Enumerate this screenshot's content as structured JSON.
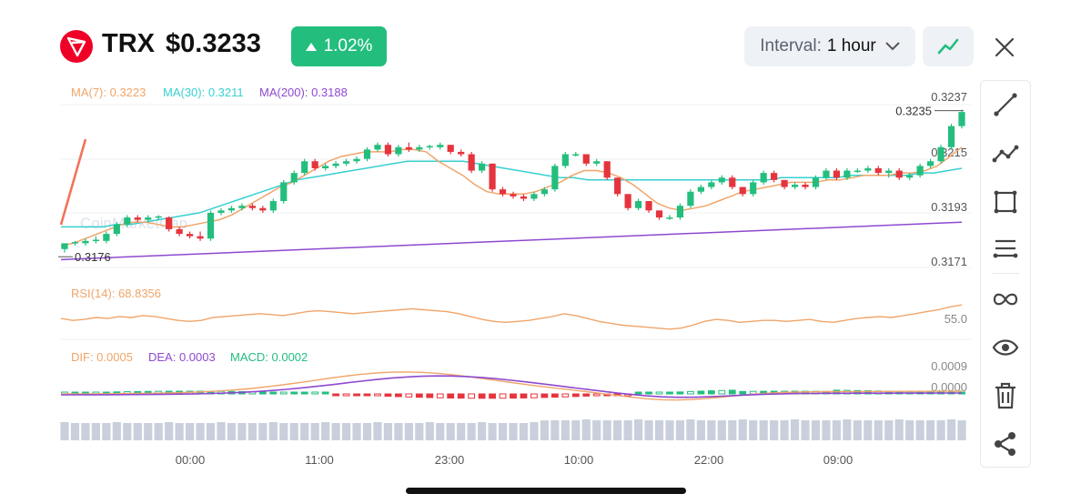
{
  "header": {
    "symbol": "TRX",
    "price": "$0.3233",
    "change": "1.02%",
    "change_direction": "up",
    "interval_label": "Interval:",
    "interval_value": "1 hour",
    "up_color": "#23BE7E",
    "down_color": "#E5343D",
    "logo_color": "#EF0027"
  },
  "icons": {
    "logo": "tron-logo-icon",
    "change_arrow": "triangle-up-icon",
    "interval_dropdown": "chevron-down-icon",
    "line_mode": "line-chart-icon",
    "close": "close-icon"
  },
  "toolbar": [
    {
      "name": "line-tool",
      "icon": "diagonal-line-icon"
    },
    {
      "name": "polyline-tool",
      "icon": "polyline-icon"
    },
    {
      "name": "rectangle-tool",
      "icon": "rectangle-icon"
    },
    {
      "name": "parallel-lines-tool",
      "icon": "parallel-lines-icon"
    },
    {
      "name": "link-tool",
      "icon": "infinity-icon"
    },
    {
      "name": "visibility-tool",
      "icon": "eye-icon"
    },
    {
      "name": "delete-tool",
      "icon": "trash-icon"
    },
    {
      "name": "share-tool",
      "icon": "share-icon"
    }
  ],
  "chart_data": {
    "type": "candlestick",
    "x_labels": [
      "00:00",
      "11:00",
      "23:00",
      "10:00",
      "22:00",
      "09:00"
    ],
    "price_axis": [
      "0.3237",
      "0.3215",
      "0.3193",
      "0.3171"
    ],
    "ylim": [
      0.3171,
      0.3237
    ],
    "high_marker": "0.3235",
    "low_marker": "0.3176",
    "ma_legend": [
      {
        "label": "MA(7): 0.3223",
        "color": "#F0A56A"
      },
      {
        "label": "MA(30): 0.3211",
        "color": "#39CFD0"
      },
      {
        "label": "MA(200): 0.3188",
        "color": "#8E49CF"
      }
    ],
    "rsi_label": "RSI(14): 68.8356",
    "rsi_axis": "55.0",
    "rsi_color": "#F0A56A",
    "macd_legend": [
      {
        "label": "DIF: 0.0005",
        "color": "#F0A56A"
      },
      {
        "label": "DEA: 0.0003",
        "color": "#8E49CF"
      },
      {
        "label": "MACD: 0.0002",
        "color": "#23BE7E"
      }
    ],
    "macd_axis": [
      "0.0009",
      "0.0000"
    ],
    "volume_color": "#C9D0DC",
    "watermark": "CoinMarketCap",
    "candles": [
      [
        0.31765,
        0.31785,
        0.3175,
        0.3179
      ],
      [
        0.3179,
        0.318,
        0.3178,
        0.31795
      ],
      [
        0.3179,
        0.3181,
        0.3178,
        0.318
      ],
      [
        0.318,
        0.3182,
        0.3179,
        0.31805
      ],
      [
        0.318,
        0.3184,
        0.3179,
        0.3183
      ],
      [
        0.3183,
        0.3188,
        0.3182,
        0.3187
      ],
      [
        0.3187,
        0.3191,
        0.3186,
        0.319
      ],
      [
        0.319,
        0.3191,
        0.3188,
        0.3189
      ],
      [
        0.3189,
        0.3191,
        0.3188,
        0.319
      ],
      [
        0.319,
        0.3191,
        0.3189,
        0.31905
      ],
      [
        0.319,
        0.31905,
        0.3184,
        0.3185
      ],
      [
        0.3185,
        0.3186,
        0.3182,
        0.3183
      ],
      [
        0.3183,
        0.3184,
        0.3181,
        0.3182
      ],
      [
        0.3182,
        0.3184,
        0.318,
        0.3181
      ],
      [
        0.3181,
        0.3193,
        0.318,
        0.3192
      ],
      [
        0.3192,
        0.3194,
        0.3191,
        0.3193
      ],
      [
        0.3193,
        0.3195,
        0.3192,
        0.3194
      ],
      [
        0.3194,
        0.3196,
        0.3193,
        0.3195
      ],
      [
        0.3195,
        0.3196,
        0.3193,
        0.3194
      ],
      [
        0.3194,
        0.3195,
        0.3192,
        0.3193
      ],
      [
        0.3193,
        0.3198,
        0.3192,
        0.3197
      ],
      [
        0.3197,
        0.3206,
        0.3196,
        0.3205
      ],
      [
        0.3205,
        0.321,
        0.3204,
        0.3209
      ],
      [
        0.3209,
        0.3215,
        0.3208,
        0.3214
      ],
      [
        0.3214,
        0.3215,
        0.321,
        0.3211
      ],
      [
        0.3211,
        0.3213,
        0.321,
        0.3212
      ],
      [
        0.3212,
        0.3214,
        0.3211,
        0.3213
      ],
      [
        0.3213,
        0.3215,
        0.3212,
        0.3214
      ],
      [
        0.3214,
        0.3216,
        0.3213,
        0.3215
      ],
      [
        0.3215,
        0.322,
        0.3214,
        0.3219
      ],
      [
        0.3219,
        0.3222,
        0.3218,
        0.3221
      ],
      [
        0.3221,
        0.3222,
        0.3216,
        0.3217
      ],
      [
        0.3217,
        0.3221,
        0.3216,
        0.322
      ],
      [
        0.322,
        0.3222,
        0.3218,
        0.3219
      ],
      [
        0.3219,
        0.3221,
        0.3218,
        0.322
      ],
      [
        0.322,
        0.3221,
        0.3219,
        0.32205
      ],
      [
        0.322,
        0.3222,
        0.3219,
        0.3221
      ],
      [
        0.3221,
        0.3221,
        0.3217,
        0.3218
      ],
      [
        0.3218,
        0.3219,
        0.3216,
        0.3217
      ],
      [
        0.3217,
        0.3218,
        0.3209,
        0.321
      ],
      [
        0.321,
        0.3214,
        0.3209,
        0.3213
      ],
      [
        0.3213,
        0.3213,
        0.3201,
        0.3202
      ],
      [
        0.3202,
        0.3203,
        0.3199,
        0.32
      ],
      [
        0.32,
        0.3201,
        0.3198,
        0.3199
      ],
      [
        0.3199,
        0.32,
        0.3197,
        0.3198
      ],
      [
        0.3198,
        0.3201,
        0.3197,
        0.32
      ],
      [
        0.32,
        0.3203,
        0.3199,
        0.3202
      ],
      [
        0.3202,
        0.3213,
        0.3201,
        0.3212
      ],
      [
        0.3212,
        0.3218,
        0.3211,
        0.3217
      ],
      [
        0.3217,
        0.3218,
        0.3216,
        0.3217
      ],
      [
        0.3217,
        0.3217,
        0.3212,
        0.3213
      ],
      [
        0.3213,
        0.3215,
        0.3212,
        0.3214
      ],
      [
        0.3214,
        0.3214,
        0.3206,
        0.3207
      ],
      [
        0.3207,
        0.3207,
        0.3199,
        0.32
      ],
      [
        0.32,
        0.32,
        0.3193,
        0.3194
      ],
      [
        0.3194,
        0.3198,
        0.3193,
        0.3197
      ],
      [
        0.3197,
        0.3197,
        0.3192,
        0.3193
      ],
      [
        0.3193,
        0.3193,
        0.3189,
        0.319
      ],
      [
        0.319,
        0.3191,
        0.3189,
        0.319
      ],
      [
        0.319,
        0.3196,
        0.3189,
        0.3195
      ],
      [
        0.3195,
        0.3202,
        0.3194,
        0.3201
      ],
      [
        0.3201,
        0.3204,
        0.32,
        0.3203
      ],
      [
        0.3203,
        0.3206,
        0.3202,
        0.3205
      ],
      [
        0.3205,
        0.3208,
        0.3204,
        0.3207
      ],
      [
        0.3207,
        0.3208,
        0.3202,
        0.3203
      ],
      [
        0.3203,
        0.3203,
        0.3199,
        0.32
      ],
      [
        0.32,
        0.3206,
        0.3199,
        0.3205
      ],
      [
        0.3205,
        0.321,
        0.3204,
        0.3209
      ],
      [
        0.3209,
        0.321,
        0.3205,
        0.3206
      ],
      [
        0.3206,
        0.3206,
        0.3202,
        0.3203
      ],
      [
        0.3203,
        0.3205,
        0.3202,
        0.3204
      ],
      [
        0.3204,
        0.3205,
        0.3202,
        0.3203
      ],
      [
        0.3203,
        0.3208,
        0.3202,
        0.3207
      ],
      [
        0.3207,
        0.3211,
        0.3206,
        0.321
      ],
      [
        0.321,
        0.3211,
        0.3206,
        0.3207
      ],
      [
        0.3207,
        0.3211,
        0.3206,
        0.321
      ],
      [
        0.321,
        0.3211,
        0.3209,
        0.321
      ],
      [
        0.321,
        0.3212,
        0.3209,
        0.3211
      ],
      [
        0.3211,
        0.3212,
        0.3208,
        0.3209
      ],
      [
        0.3209,
        0.3211,
        0.3207,
        0.321
      ],
      [
        0.321,
        0.3211,
        0.3206,
        0.3207
      ],
      [
        0.3207,
        0.3209,
        0.3206,
        0.3208
      ],
      [
        0.3208,
        0.3213,
        0.3207,
        0.3212
      ],
      [
        0.3212,
        0.3215,
        0.3211,
        0.3214
      ],
      [
        0.3214,
        0.3221,
        0.3213,
        0.322
      ],
      [
        0.322,
        0.323,
        0.3219,
        0.3229
      ],
      [
        0.3229,
        0.3236,
        0.3228,
        0.3235
      ]
    ],
    "ma7": [
      0.3178,
      0.3179,
      0.3181,
      0.3183,
      0.3185,
      0.3187,
      0.3188,
      0.3188,
      0.3187,
      0.3186,
      0.3186,
      0.3187,
      0.3188,
      0.3189,
      0.3191,
      0.3194,
      0.3197,
      0.32,
      0.3203,
      0.3205,
      0.3208,
      0.3211,
      0.3214,
      0.3216,
      0.3217,
      0.3218,
      0.3218,
      0.3218,
      0.3219,
      0.3219,
      0.3218,
      0.3214,
      0.3211,
      0.3208,
      0.3204,
      0.3201,
      0.32,
      0.32,
      0.32,
      0.3201,
      0.3203,
      0.3205,
      0.3208,
      0.321,
      0.321,
      0.3209,
      0.3207,
      0.3204,
      0.32,
      0.3196,
      0.3194,
      0.3193,
      0.3194,
      0.3195,
      0.3197,
      0.3199,
      0.3201,
      0.3202,
      0.3203,
      0.3204,
      0.3205,
      0.3205,
      0.3205,
      0.3206,
      0.3206,
      0.3207,
      0.3208,
      0.3208,
      0.3208,
      0.3209,
      0.3209,
      0.321,
      0.3212,
      0.3216,
      0.322
    ],
    "ma30": [
      0.3186,
      0.3186,
      0.3186,
      0.3186,
      0.3187,
      0.3187,
      0.3188,
      0.3189,
      0.319,
      0.3191,
      0.3192,
      0.3194,
      0.3196,
      0.3198,
      0.32,
      0.3202,
      0.3204,
      0.3206,
      0.3207,
      0.3208,
      0.3209,
      0.321,
      0.3211,
      0.3212,
      0.3213,
      0.3214,
      0.3214,
      0.3214,
      0.3214,
      0.3214,
      0.3213,
      0.3212,
      0.3211,
      0.321,
      0.3209,
      0.3208,
      0.3207,
      0.3207,
      0.3206,
      0.3206,
      0.3206,
      0.3206,
      0.3206,
      0.3206,
      0.3206,
      0.3206,
      0.3206,
      0.3206,
      0.3206,
      0.3206,
      0.3206,
      0.3206,
      0.3207,
      0.3207,
      0.3207,
      0.3207,
      0.3207,
      0.3208,
      0.3208,
      0.3208,
      0.3208,
      0.3208,
      0.3209,
      0.3209,
      0.321,
      0.3211
    ],
    "ma200": [
      0.3172,
      0.3188
    ],
    "rsi": [
      55,
      53,
      54,
      56,
      55,
      57,
      56,
      58,
      57,
      55,
      53,
      52,
      53,
      56,
      57,
      58,
      59,
      60,
      59,
      58,
      60,
      62,
      63,
      62,
      61,
      60,
      61,
      62,
      63,
      64,
      65,
      64,
      63,
      62,
      60,
      57,
      54,
      52,
      51,
      52,
      53,
      55,
      57,
      60,
      58,
      55,
      52,
      50,
      48,
      47,
      46,
      45,
      44,
      45,
      48,
      52,
      54,
      53,
      51,
      52,
      53,
      53,
      52,
      53,
      54,
      52,
      51,
      53,
      55,
      56,
      57,
      56,
      58,
      60,
      62,
      64,
      67,
      69
    ]
  }
}
